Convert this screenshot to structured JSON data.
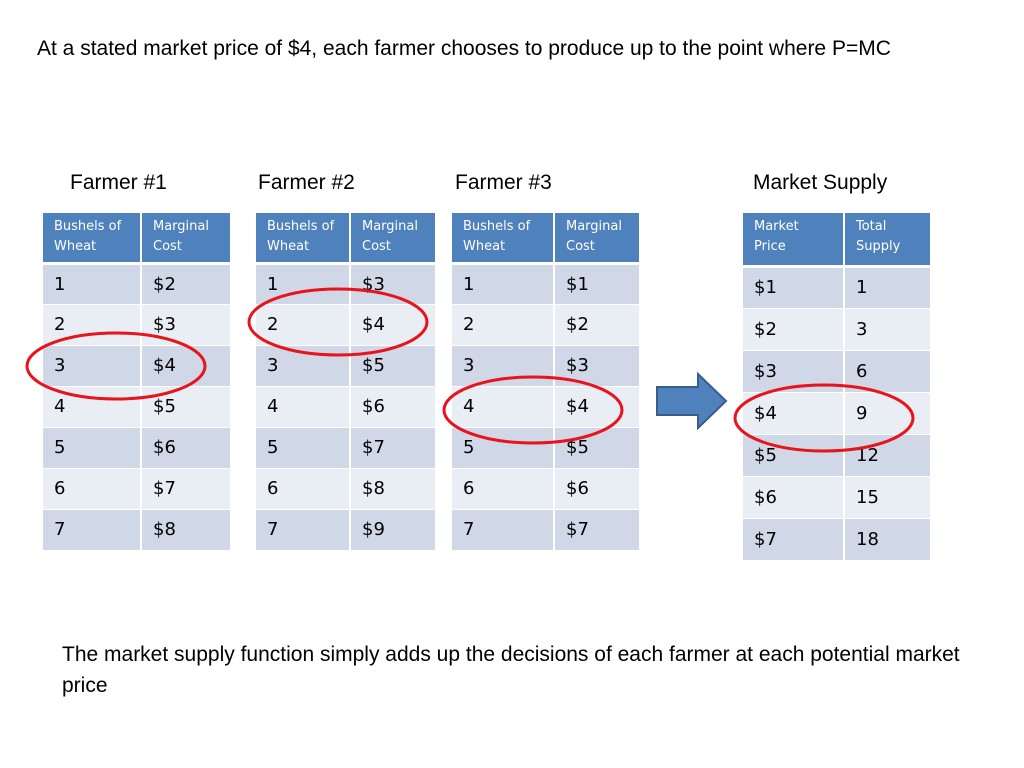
{
  "intro_text": "At a stated market price of $4, each farmer chooses to produce up to the point where P=MC",
  "outro_text": "The market supply function simply adds up the decisions of each farmer at each potential market price",
  "accent_color": "#4f81bd",
  "highlight_color": "#e8131b",
  "arrow_icon": "right-arrow-icon",
  "farmers": [
    {
      "title": "Farmer #1",
      "headers": [
        "Bushels of Wheat",
        "Marginal Cost"
      ],
      "rows": [
        [
          "1",
          "$2"
        ],
        [
          "2",
          "$3"
        ],
        [
          "3",
          "$4"
        ],
        [
          "4",
          "$5"
        ],
        [
          "5",
          "$6"
        ],
        [
          "6",
          "$7"
        ],
        [
          "7",
          "$8"
        ]
      ]
    },
    {
      "title": "Farmer #2",
      "headers": [
        "Bushels of Wheat",
        "Marginal Cost"
      ],
      "rows": [
        [
          "1",
          "$3"
        ],
        [
          "2",
          "$4"
        ],
        [
          "3",
          "$5"
        ],
        [
          "4",
          "$6"
        ],
        [
          "5",
          "$7"
        ],
        [
          "6",
          "$8"
        ],
        [
          "7",
          "$9"
        ]
      ]
    },
    {
      "title": "Farmer #3",
      "headers": [
        "Bushels of Wheat",
        "Marginal Cost"
      ],
      "rows": [
        [
          "1",
          "$1"
        ],
        [
          "2",
          "$2"
        ],
        [
          "3",
          "$3"
        ],
        [
          "4",
          "$4"
        ],
        [
          "5",
          "$5"
        ],
        [
          "6",
          "$6"
        ],
        [
          "7",
          "$7"
        ]
      ]
    }
  ],
  "market": {
    "title": "Market Supply",
    "headers": [
      "Market Price",
      "Total Supply"
    ],
    "rows": [
      [
        "$1",
        "1"
      ],
      [
        "$2",
        "3"
      ],
      [
        "$3",
        "6"
      ],
      [
        "$4",
        "9"
      ],
      [
        "$5",
        "12"
      ],
      [
        "$6",
        "15"
      ],
      [
        "$7",
        "18"
      ]
    ]
  }
}
